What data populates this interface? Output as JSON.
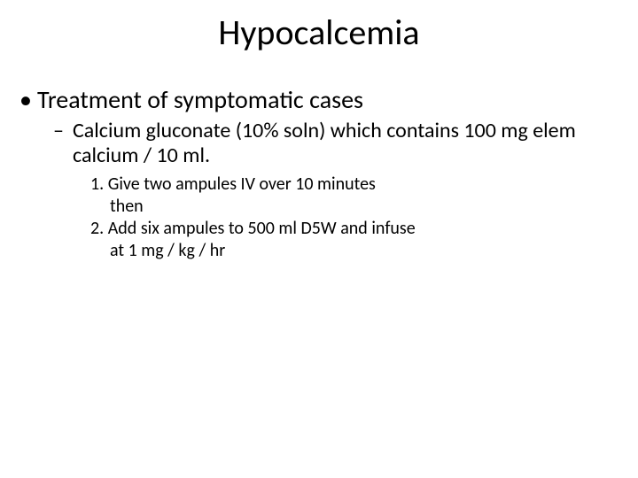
{
  "title": "Hypocalcemia",
  "level1": {
    "bullet": "•",
    "text": "Treatment of symptomatic cases"
  },
  "level2": {
    "dash": "–",
    "text": "Calcium gluconate (10% soln) which contains 100 mg elem calcium / 10 ml."
  },
  "steps": {
    "s1": "1. Give two ampules IV over 10 minutes",
    "s1b": "then",
    "s2": "2. Add six ampules to 500 ml D5W and infuse",
    "s2b": "at 1 mg / kg / hr"
  },
  "colors": {
    "background": "#ffffff",
    "text": "#000000"
  },
  "fonts": {
    "title_size_pt": 40,
    "lvl1_size_pt": 28,
    "lvl2_size_pt": 24,
    "lvl3_size_pt": 20,
    "family": "Calibri"
  }
}
